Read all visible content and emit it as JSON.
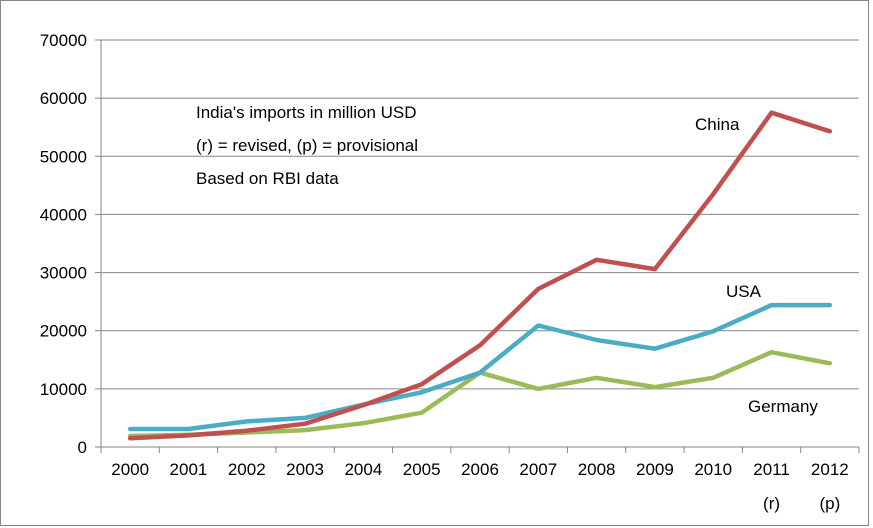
{
  "chart_data": {
    "type": "line",
    "title": "",
    "xlabel": "",
    "ylabel": "",
    "categories": [
      "2000",
      "2001",
      "2002",
      "2003",
      "2004",
      "2005",
      "2006",
      "2007",
      "2008",
      "2009",
      "2010",
      "2011",
      "2012"
    ],
    "category_sublabels": [
      "",
      "",
      "",
      "",
      "",
      "",
      "",
      "",
      "",
      "",
      "",
      "(r)",
      "(p)"
    ],
    "ylim": [
      0,
      70000
    ],
    "yticks": [
      "0",
      "10000",
      "20000",
      "30000",
      "40000",
      "50000",
      "60000",
      "70000"
    ],
    "grid": true,
    "series": [
      {
        "name": "China",
        "color": "#c0504d",
        "values": [
          1500,
          2000,
          2800,
          4000,
          7200,
          10800,
          17500,
          27200,
          32200,
          30600,
          43500,
          57500,
          54300
        ]
      },
      {
        "name": "USA",
        "color": "#4bacc6",
        "values": [
          3100,
          3100,
          4400,
          5000,
          7300,
          9400,
          12800,
          20900,
          18400,
          16900,
          19900,
          24400,
          24400
        ]
      },
      {
        "name": "Germany",
        "color": "#9bbb59",
        "values": [
          1900,
          2100,
          2500,
          2900,
          4100,
          5900,
          12800,
          10000,
          11900,
          10300,
          11900,
          16300,
          14400
        ]
      }
    ],
    "annotations": [
      "India's imports in million USD",
      "(r) = revised, (p) = provisional",
      "Based on RBI data"
    ]
  }
}
